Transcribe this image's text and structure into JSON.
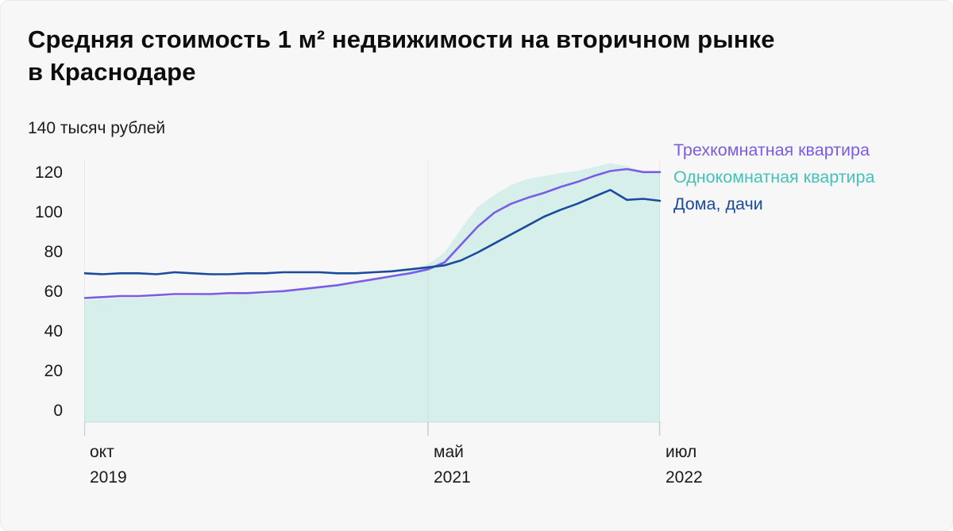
{
  "card": {
    "title_line1": "Средняя стоимость 1 м²  недвижимости на вторичном рынке",
    "title_line2": "в Краснодаре"
  },
  "chart_data": {
    "type": "area",
    "title": "Средняя стоимость 1 м² недвижимости на вторичном рынке в Краснодаре",
    "unit_label": "140 тысяч рублей",
    "ylabel": "тысяч рублей",
    "ylim": [
      0,
      140
    ],
    "y_ticks": [
      120,
      100,
      80,
      60,
      40,
      20,
      0
    ],
    "grid": "vertical ticks only",
    "legend_position": "top-right",
    "x_note": "monthly points, окт 2019 — июл 2022",
    "x_ticks": [
      {
        "month": "окт",
        "year": "2019",
        "pos": 0
      },
      {
        "month": "май",
        "year": "2021",
        "pos": 19
      },
      {
        "month": "июл",
        "year": "2022",
        "pos": 33
      }
    ],
    "series": [
      {
        "name": "Трехкомнатная квартира",
        "type": "line",
        "color": "#7b5ce5",
        "values": [
          57,
          57.5,
          58,
          58,
          58.5,
          59,
          59,
          59,
          59.5,
          59.5,
          60,
          60.5,
          61.5,
          62.5,
          63.5,
          65,
          66.5,
          68,
          69.5,
          71.5,
          75,
          84,
          93,
          100,
          104.5,
          107.5,
          110,
          113,
          115.5,
          118.5,
          121,
          122,
          120.5,
          120.5
        ]
      },
      {
        "name": "Однокомнатная квартира",
        "type": "area",
        "color": "#44c1bb",
        "fill": "#d7efeb",
        "values": [
          56,
          56.5,
          57,
          57,
          57.5,
          58,
          58,
          58.5,
          58.5,
          59,
          59,
          60,
          61,
          62.5,
          64,
          65.5,
          67,
          68.5,
          71,
          74,
          80,
          92,
          103,
          109,
          114,
          117,
          118.5,
          120,
          121,
          123,
          125,
          123.5,
          121,
          120
        ]
      },
      {
        "name": "Дома, дачи",
        "type": "line",
        "color": "#1a4b9c",
        "values": [
          69.5,
          69,
          69.5,
          69.5,
          69,
          70,
          69.5,
          69,
          69,
          69.5,
          69.5,
          70,
          70,
          70,
          69.5,
          69.5,
          70,
          70.5,
          71.5,
          72.5,
          73.5,
          76,
          80,
          84.5,
          89,
          93.5,
          98,
          101.5,
          104.5,
          108,
          111.5,
          106.5,
          107,
          106
        ]
      }
    ],
    "colors": {
      "background": "#f7f7f8",
      "area_fill": "#d7efeb",
      "gridline": "rgba(20,40,60,0.06)",
      "tick_mark": "#c9ced2",
      "axis_line": "rgba(0,0,0,0.08)",
      "text": "#1a1a1a"
    }
  }
}
